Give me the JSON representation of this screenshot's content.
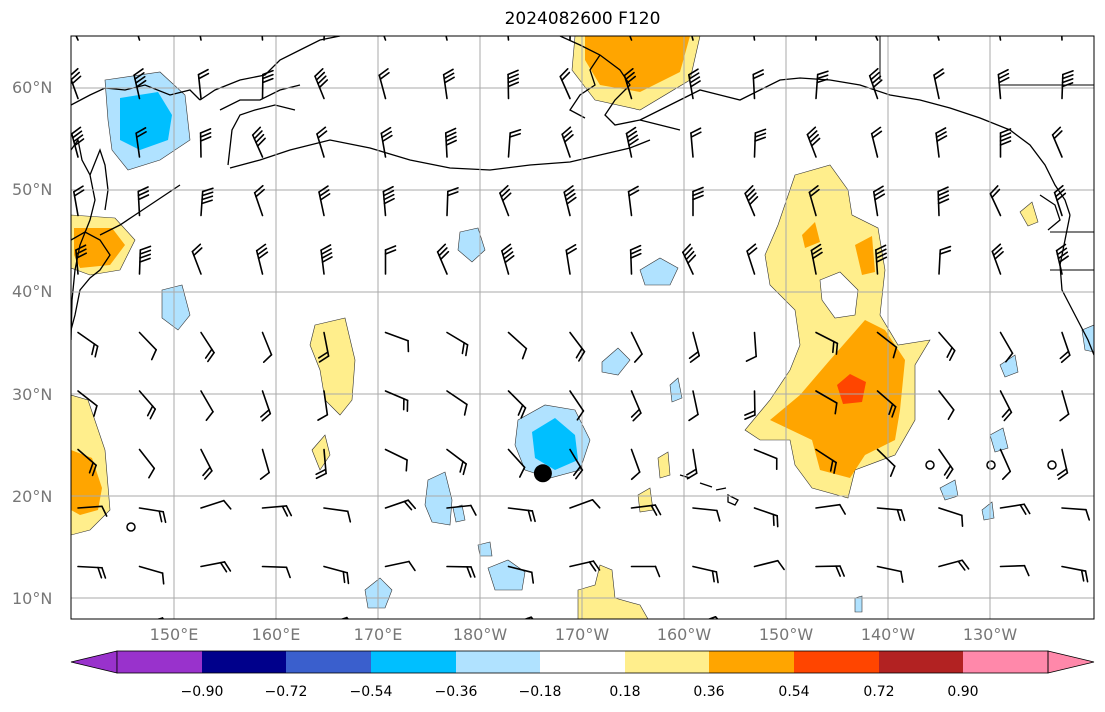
{
  "title": "2024082600 F120",
  "lat_labels": [
    "60°N",
    "50°N",
    "40°N",
    "30°N",
    "20°N",
    "10°N"
  ],
  "lon_labels": [
    "150°E",
    "160°E",
    "170°E",
    "180°W",
    "170°W",
    "160°W",
    "150°W",
    "140°W",
    "130°W"
  ],
  "colorbar": {
    "ticks": [
      "−0.90",
      "−0.72",
      "−0.54",
      "−0.36",
      "−0.18",
      "0.18",
      "0.36",
      "0.54",
      "0.72",
      "0.90"
    ],
    "colors": [
      "#9932cc",
      "#00008b",
      "#3a5fcd",
      "#00bfff",
      "#b0e2ff",
      "#ffffff",
      "#ffee8c",
      "#ffa500",
      "#ff4500",
      "#b22222",
      "#ff88aa"
    ]
  },
  "marker": {
    "lat": 22.3,
    "lon": -173.9
  }
}
